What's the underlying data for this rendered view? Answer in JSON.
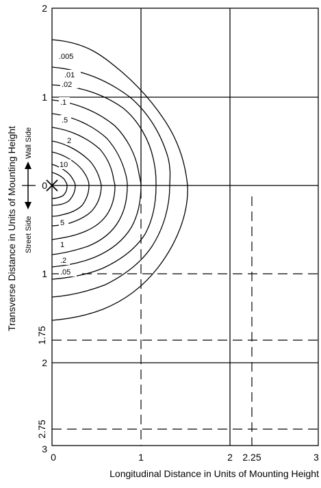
{
  "axes": {
    "x_title": "Longitudinal Distance in Units of Mounting Height",
    "y_title": "Transverse Distance in Units of Mounting Height",
    "x_ticks": [
      "0",
      "1",
      "2",
      "2.25",
      "3"
    ],
    "y_ticks_top": [
      "2",
      "1",
      "0"
    ],
    "y_ticks_bottom": [
      "1",
      "1.75",
      "2",
      "2.75",
      "3"
    ]
  },
  "sides": {
    "wall": "Wall Side",
    "street": "Street Side"
  },
  "contours": {
    "labels_wall": [
      ".005",
      ".01",
      ".02",
      ".1",
      ".5",
      "2",
      "10"
    ],
    "labels_street": [
      "5",
      "1",
      ".2",
      ".05"
    ]
  },
  "colors": {
    "line": "#000000",
    "background": "#ffffff"
  }
}
